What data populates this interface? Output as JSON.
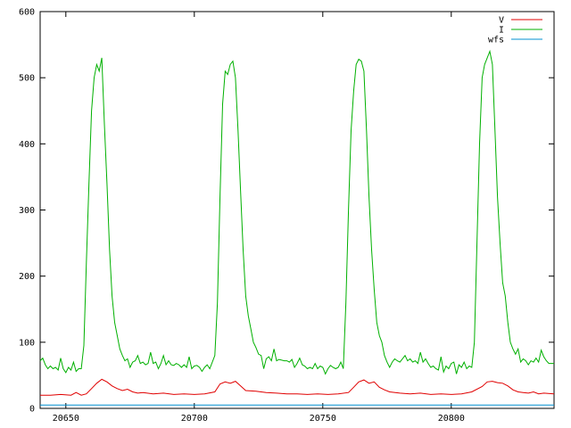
{
  "chart_data": {
    "type": "line",
    "title": "",
    "xlabel": "",
    "ylabel": "",
    "xlim": [
      20640,
      20840
    ],
    "ylim": [
      0,
      600
    ],
    "x_ticks": [
      20650,
      20700,
      20750,
      20800
    ],
    "x_tick_labels": [
      "20650",
      "20700",
      "20750",
      "20800"
    ],
    "y_ticks": [
      0,
      100,
      200,
      300,
      400,
      500,
      600
    ],
    "y_tick_labels": [
      "0",
      "100",
      "200",
      "300",
      "400",
      "500",
      "600"
    ],
    "grid": false,
    "legend_position": "top-right",
    "series": [
      {
        "name": "V",
        "color": "#e00000",
        "points": [
          [
            20640,
            20
          ],
          [
            20644,
            20
          ],
          [
            20648,
            21
          ],
          [
            20652,
            20
          ],
          [
            20654,
            24
          ],
          [
            20656,
            20
          ],
          [
            20658,
            22
          ],
          [
            20660,
            30
          ],
          [
            20662,
            38
          ],
          [
            20664,
            44
          ],
          [
            20666,
            40
          ],
          [
            20668,
            34
          ],
          [
            20670,
            30
          ],
          [
            20672,
            27
          ],
          [
            20674,
            29
          ],
          [
            20676,
            25
          ],
          [
            20678,
            23
          ],
          [
            20680,
            24
          ],
          [
            20684,
            22
          ],
          [
            20688,
            23
          ],
          [
            20692,
            21
          ],
          [
            20696,
            22
          ],
          [
            20700,
            21
          ],
          [
            20704,
            22
          ],
          [
            20708,
            25
          ],
          [
            20710,
            37
          ],
          [
            20712,
            40
          ],
          [
            20714,
            38
          ],
          [
            20716,
            41
          ],
          [
            20718,
            34
          ],
          [
            20720,
            27
          ],
          [
            20724,
            26
          ],
          [
            20728,
            24
          ],
          [
            20732,
            23
          ],
          [
            20736,
            22
          ],
          [
            20740,
            22
          ],
          [
            20744,
            21
          ],
          [
            20748,
            22
          ],
          [
            20752,
            21
          ],
          [
            20756,
            22
          ],
          [
            20760,
            24
          ],
          [
            20762,
            32
          ],
          [
            20764,
            40
          ],
          [
            20766,
            43
          ],
          [
            20768,
            38
          ],
          [
            20770,
            40
          ],
          [
            20772,
            32
          ],
          [
            20774,
            28
          ],
          [
            20776,
            25
          ],
          [
            20780,
            23
          ],
          [
            20784,
            22
          ],
          [
            20788,
            23
          ],
          [
            20792,
            21
          ],
          [
            20796,
            22
          ],
          [
            20800,
            21
          ],
          [
            20804,
            22
          ],
          [
            20808,
            25
          ],
          [
            20812,
            33
          ],
          [
            20814,
            40
          ],
          [
            20816,
            41
          ],
          [
            20818,
            39
          ],
          [
            20820,
            38
          ],
          [
            20822,
            34
          ],
          [
            20824,
            28
          ],
          [
            20826,
            25
          ],
          [
            20828,
            24
          ],
          [
            20830,
            23
          ],
          [
            20832,
            25
          ],
          [
            20834,
            22
          ],
          [
            20836,
            23
          ],
          [
            20840,
            22
          ]
        ]
      },
      {
        "name": "I",
        "color": "#00b000",
        "points": [
          [
            20640,
            72
          ],
          [
            20641,
            76
          ],
          [
            20642,
            66
          ],
          [
            20643,
            60
          ],
          [
            20644,
            64
          ],
          [
            20645,
            60
          ],
          [
            20646,
            62
          ],
          [
            20647,
            58
          ],
          [
            20648,
            76
          ],
          [
            20649,
            60
          ],
          [
            20650,
            54
          ],
          [
            20651,
            62
          ],
          [
            20652,
            58
          ],
          [
            20653,
            70
          ],
          [
            20654,
            56
          ],
          [
            20655,
            60
          ],
          [
            20656,
            60
          ],
          [
            20657,
            95
          ],
          [
            20658,
            220
          ],
          [
            20659,
            340
          ],
          [
            20660,
            450
          ],
          [
            20661,
            500
          ],
          [
            20662,
            520
          ],
          [
            20663,
            510
          ],
          [
            20664,
            530
          ],
          [
            20665,
            430
          ],
          [
            20666,
            340
          ],
          [
            20667,
            240
          ],
          [
            20668,
            170
          ],
          [
            20669,
            130
          ],
          [
            20670,
            110
          ],
          [
            20671,
            90
          ],
          [
            20672,
            80
          ],
          [
            20673,
            72
          ],
          [
            20674,
            75
          ],
          [
            20675,
            62
          ],
          [
            20676,
            70
          ],
          [
            20677,
            72
          ],
          [
            20678,
            80
          ],
          [
            20679,
            68
          ],
          [
            20680,
            70
          ],
          [
            20681,
            66
          ],
          [
            20682,
            68
          ],
          [
            20683,
            85
          ],
          [
            20684,
            68
          ],
          [
            20685,
            70
          ],
          [
            20686,
            60
          ],
          [
            20687,
            68
          ],
          [
            20688,
            80
          ],
          [
            20689,
            66
          ],
          [
            20690,
            72
          ],
          [
            20691,
            66
          ],
          [
            20692,
            65
          ],
          [
            20693,
            68
          ],
          [
            20694,
            66
          ],
          [
            20695,
            62
          ],
          [
            20696,
            66
          ],
          [
            20697,
            62
          ],
          [
            20698,
            78
          ],
          [
            20699,
            60
          ],
          [
            20700,
            64
          ],
          [
            20701,
            65
          ],
          [
            20702,
            62
          ],
          [
            20703,
            56
          ],
          [
            20704,
            62
          ],
          [
            20705,
            66
          ],
          [
            20706,
            60
          ],
          [
            20707,
            70
          ],
          [
            20708,
            80
          ],
          [
            20709,
            160
          ],
          [
            20710,
            320
          ],
          [
            20711,
            460
          ],
          [
            20712,
            510
          ],
          [
            20713,
            505
          ],
          [
            20714,
            520
          ],
          [
            20715,
            525
          ],
          [
            20716,
            500
          ],
          [
            20717,
            420
          ],
          [
            20718,
            330
          ],
          [
            20719,
            240
          ],
          [
            20720,
            170
          ],
          [
            20721,
            140
          ],
          [
            20722,
            120
          ],
          [
            20723,
            100
          ],
          [
            20724,
            92
          ],
          [
            20725,
            82
          ],
          [
            20726,
            80
          ],
          [
            20727,
            60
          ],
          [
            20728,
            75
          ],
          [
            20729,
            78
          ],
          [
            20730,
            72
          ],
          [
            20731,
            90
          ],
          [
            20732,
            72
          ],
          [
            20733,
            74
          ],
          [
            20734,
            73
          ],
          [
            20735,
            72
          ],
          [
            20736,
            72
          ],
          [
            20737,
            70
          ],
          [
            20738,
            74
          ],
          [
            20739,
            62
          ],
          [
            20740,
            68
          ],
          [
            20741,
            76
          ],
          [
            20742,
            66
          ],
          [
            20743,
            64
          ],
          [
            20744,
            60
          ],
          [
            20745,
            62
          ],
          [
            20746,
            60
          ],
          [
            20747,
            68
          ],
          [
            20748,
            60
          ],
          [
            20749,
            64
          ],
          [
            20750,
            62
          ],
          [
            20751,
            52
          ],
          [
            20752,
            60
          ],
          [
            20753,
            65
          ],
          [
            20754,
            62
          ],
          [
            20755,
            60
          ],
          [
            20756,
            62
          ],
          [
            20757,
            70
          ],
          [
            20758,
            60
          ],
          [
            20759,
            160
          ],
          [
            20760,
            300
          ],
          [
            20761,
            420
          ],
          [
            20762,
            480
          ],
          [
            20763,
            520
          ],
          [
            20764,
            528
          ],
          [
            20765,
            525
          ],
          [
            20766,
            510
          ],
          [
            20767,
            420
          ],
          [
            20768,
            320
          ],
          [
            20769,
            240
          ],
          [
            20770,
            180
          ],
          [
            20771,
            130
          ],
          [
            20772,
            110
          ],
          [
            20773,
            100
          ],
          [
            20774,
            80
          ],
          [
            20775,
            70
          ],
          [
            20776,
            62
          ],
          [
            20777,
            70
          ],
          [
            20778,
            75
          ],
          [
            20779,
            72
          ],
          [
            20780,
            70
          ],
          [
            20781,
            75
          ],
          [
            20782,
            80
          ],
          [
            20783,
            72
          ],
          [
            20784,
            75
          ],
          [
            20785,
            70
          ],
          [
            20786,
            72
          ],
          [
            20787,
            68
          ],
          [
            20788,
            85
          ],
          [
            20789,
            70
          ],
          [
            20790,
            75
          ],
          [
            20791,
            68
          ],
          [
            20792,
            62
          ],
          [
            20793,
            64
          ],
          [
            20794,
            60
          ],
          [
            20795,
            58
          ],
          [
            20796,
            78
          ],
          [
            20797,
            55
          ],
          [
            20798,
            64
          ],
          [
            20799,
            60
          ],
          [
            20800,
            68
          ],
          [
            20801,
            70
          ],
          [
            20802,
            52
          ],
          [
            20803,
            66
          ],
          [
            20804,
            62
          ],
          [
            20805,
            70
          ],
          [
            20806,
            60
          ],
          [
            20807,
            64
          ],
          [
            20808,
            62
          ],
          [
            20809,
            100
          ],
          [
            20810,
            250
          ],
          [
            20811,
            400
          ],
          [
            20812,
            500
          ],
          [
            20813,
            520
          ],
          [
            20814,
            530
          ],
          [
            20815,
            540
          ],
          [
            20816,
            520
          ],
          [
            20817,
            420
          ],
          [
            20818,
            320
          ],
          [
            20819,
            250
          ],
          [
            20820,
            190
          ],
          [
            20821,
            170
          ],
          [
            20822,
            130
          ],
          [
            20823,
            100
          ],
          [
            20824,
            90
          ],
          [
            20825,
            82
          ],
          [
            20826,
            90
          ],
          [
            20827,
            70
          ],
          [
            20828,
            75
          ],
          [
            20829,
            72
          ],
          [
            20830,
            66
          ],
          [
            20831,
            72
          ],
          [
            20832,
            70
          ],
          [
            20833,
            76
          ],
          [
            20834,
            70
          ],
          [
            20835,
            88
          ],
          [
            20836,
            78
          ],
          [
            20837,
            72
          ],
          [
            20838,
            68
          ],
          [
            20840,
            68
          ]
        ]
      },
      {
        "name": "wfs",
        "color": "#0090d0",
        "points": [
          [
            20640,
            5
          ],
          [
            20660,
            5
          ],
          [
            20680,
            5
          ],
          [
            20700,
            5
          ],
          [
            20720,
            5
          ],
          [
            20740,
            5
          ],
          [
            20760,
            5
          ],
          [
            20780,
            5
          ],
          [
            20800,
            5
          ],
          [
            20820,
            5
          ],
          [
            20840,
            5
          ]
        ]
      }
    ]
  }
}
